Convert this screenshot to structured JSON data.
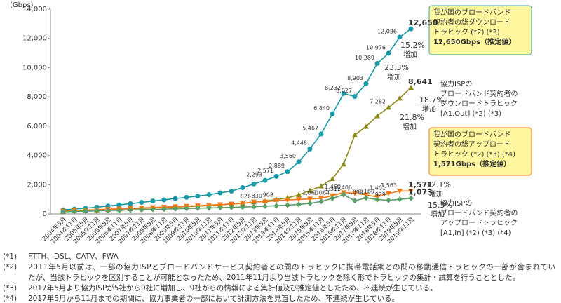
{
  "chart_data": {
    "type": "line",
    "y_label": "(Gbps)",
    "categories": [
      "2004年5月",
      "2004年11月",
      "2005年5月",
      "2005年11月",
      "2006年5月",
      "2006年11月",
      "2007年5月",
      "2007年11月",
      "2008年5月",
      "2008年11月",
      "2009年5月",
      "2009年11月",
      "2010年5月",
      "2010年11月",
      "2011年5月",
      "2011年11月",
      "2012年5月",
      "2012年11月",
      "2013年5月",
      "2013年11月",
      "2014年5月",
      "2014年11月",
      "2015年5月",
      "2015年11月",
      "2016年5月",
      "2016年11月",
      "2017年5月",
      "2017年11月",
      "2018年5月",
      "2018年11月",
      "2019年5月",
      "2019年11月"
    ],
    "ylim": [
      0,
      14000
    ],
    "yticks": [
      0,
      {
        "value": 2000,
        "label": "2,000"
      },
      {
        "value": 4000,
        "label": "4,000"
      },
      {
        "value": 6000,
        "label": "6,000"
      },
      {
        "value": 8000,
        "label": "8,000"
      },
      {
        "value": 10000,
        "label": "10,000"
      },
      {
        "value": 12000,
        "label": "12,000"
      },
      {
        "value": 14000,
        "label": "14,000"
      }
    ],
    "grid": false,
    "series": [
      {
        "color": "#1a9aa6",
        "marker": "circle",
        "values": [
          280,
          330,
          390,
          460,
          540,
          620,
          700,
          790,
          880,
          960,
          1050,
          1130,
          1220,
          1310,
          1440,
          1560,
          1800,
          2050,
          2293,
          2571,
          2889,
          3560,
          4448,
          5467,
          6840,
          8232,
          8027,
          8903,
          10289,
          10976,
          12086,
          12650
        ],
        "value_labels": [
          null,
          null,
          null,
          null,
          null,
          null,
          null,
          null,
          null,
          null,
          null,
          null,
          null,
          null,
          null,
          null,
          null,
          null,
          "2,293",
          "2,571",
          "2,889",
          "3,560",
          "4,448",
          "5,467",
          "6,840",
          "8,232",
          "8,027",
          "8,903",
          "10,289",
          "10,976",
          "12,086",
          "12,650"
        ]
      },
      {
        "color": "#8c8a1c",
        "marker": "triangle-up",
        "values": [
          170,
          200,
          230,
          260,
          290,
          320,
          350,
          380,
          410,
          440,
          470,
          500,
          530,
          570,
          620,
          680,
          730,
          800,
          880,
          980,
          1100,
          1300,
          1600,
          1900,
          2400,
          3400,
          5400,
          5980,
          6700,
          7282,
          7900,
          8641
        ],
        "value_labels": [
          null,
          null,
          null,
          null,
          null,
          null,
          null,
          null,
          null,
          null,
          null,
          null,
          null,
          null,
          null,
          null,
          null,
          null,
          null,
          null,
          null,
          null,
          null,
          null,
          null,
          null,
          null,
          null,
          null,
          "7,282",
          null,
          "8,641"
        ]
      },
      {
        "color": "#f07a18",
        "marker": "triangle-down",
        "values": [
          200,
          230,
          260,
          290,
          320,
          350,
          380,
          410,
          440,
          470,
          500,
          530,
          560,
          600,
          640,
          680,
          720,
          826,
          830,
          908,
          950,
          990,
          1020,
          1060,
          1250,
          1460,
          1406,
          1300,
          1160,
          1401,
          1563,
          1571
        ],
        "value_labels": [
          null,
          null,
          null,
          null,
          null,
          null,
          null,
          null,
          null,
          null,
          null,
          null,
          null,
          null,
          null,
          null,
          null,
          "826",
          "830",
          "908",
          null,
          null,
          null,
          "1,060",
          null,
          "1,460",
          "1,406",
          null,
          "1,160",
          "1,401",
          "1,563",
          "1,571"
        ]
      },
      {
        "color": "#5a9e6a",
        "marker": "diamond",
        "values": [
          150,
          170,
          190,
          210,
          230,
          250,
          270,
          290,
          310,
          330,
          350,
          370,
          390,
          410,
          430,
          450,
          470,
          500,
          530,
          560,
          600,
          650,
          720,
          850,
          1064,
          1312,
          900,
          1099,
          980,
          929,
          1000,
          1073
        ],
        "value_labels": [
          null,
          null,
          null,
          null,
          null,
          null,
          null,
          null,
          null,
          null,
          null,
          null,
          null,
          null,
          null,
          null,
          null,
          null,
          null,
          null,
          null,
          null,
          null,
          null,
          "1,064",
          "1,312",
          null,
          "1,099",
          null,
          "929",
          null,
          "1,073"
        ]
      }
    ],
    "callouts": [
      {
        "lines": [
          "我が国のブロードバンド",
          "契約者の総ダウンロード",
          "トラヒック (*2) (*3)",
          "12,650Gbps（推定値）"
        ]
      },
      {
        "lines": [
          "協力ISPの",
          "ブロードバンド契約者の",
          "ダウンロードトラヒック",
          "[A1,Out] (*2) (*3)"
        ]
      },
      {
        "lines": [
          "我が国のブロードバンド",
          "契約者の総アップロード",
          "トラヒック (*2) (*3) (*4)",
          "1,571Gbps（推定値）"
        ]
      },
      {
        "lines": [
          "協力ISPの",
          "ブロードバンド契約者の",
          "アップロードトラヒック",
          "[A1,In] (*2) (*3) (*4)"
        ]
      }
    ],
    "growth": [
      {
        "text": "15.2%",
        "sub": "増加"
      },
      {
        "text": "23.3%",
        "sub": "増加"
      },
      {
        "text": "18.7%",
        "sub": "増加"
      },
      {
        "text": "21.8%",
        "sub": "増加"
      },
      {
        "text": "12.1%",
        "sub": "増加"
      },
      {
        "text": "15.5%",
        "sub": "増加"
      }
    ]
  },
  "footnotes": [
    {
      "mark": "(*1)",
      "lines": [
        "FTTH、DSL、CATV、FWA"
      ]
    },
    {
      "mark": "(*2)",
      "lines": [
        "2011年5月以前は、一部の協力ISPとブロードバンドサービス契約者との間のトラヒックに携帯電話網との間の移動通信トラヒックの一部が含まれてい",
        "たが、当該トラヒックを区別することが可能となったため、2011年11月より当該トラヒックを除く形でトラヒックの集計・試算を行うこととした。"
      ]
    },
    {
      "mark": "(*3)",
      "lines": [
        "2017年5月より協力ISPが5社から9社に増加し、9社からの情報による集計値及び推定値としたため、不連続が生じている。"
      ]
    },
    {
      "mark": "(*4)",
      "lines": [
        "2017年5月から11月までの期間に、協力事業者の一部において計測方法を見直したため、不連続が生じている。"
      ]
    }
  ]
}
